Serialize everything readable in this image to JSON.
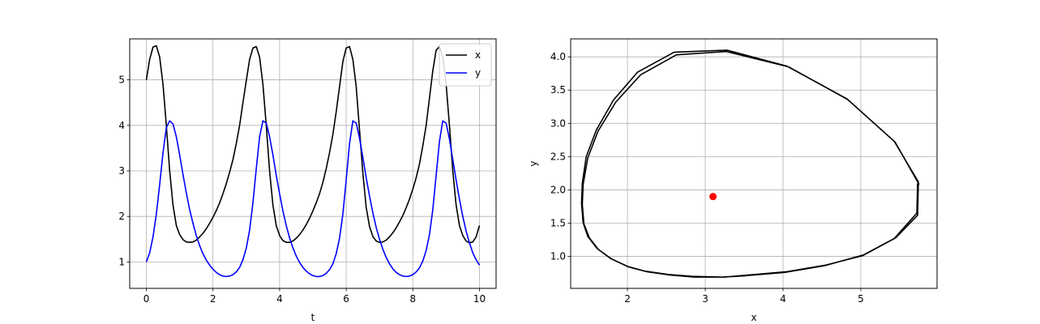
{
  "chart_data": [
    {
      "type": "line",
      "title": "",
      "xlabel": "t",
      "ylabel": "",
      "xlim": [
        -0.5,
        10.5
      ],
      "ylim": [
        0.42,
        5.9
      ],
      "xticks": [
        0,
        2,
        4,
        6,
        8,
        10
      ],
      "yticks": [
        1,
        2,
        3,
        4,
        5
      ],
      "grid": true,
      "legend_position": "top-right",
      "series": [
        {
          "name": "x",
          "color": "#000000",
          "points": [
            [
              0,
              5.0
            ],
            [
              0.1,
              5.45
            ],
            [
              0.2,
              5.72
            ],
            [
              0.3,
              5.75
            ],
            [
              0.4,
              5.5
            ],
            [
              0.5,
              4.9
            ],
            [
              0.6,
              4.0
            ],
            [
              0.7,
              3.0
            ],
            [
              0.8,
              2.25
            ],
            [
              0.9,
              1.8
            ],
            [
              1.0,
              1.6
            ],
            [
              1.1,
              1.49
            ],
            [
              1.2,
              1.44
            ],
            [
              1.3,
              1.43
            ],
            [
              1.4,
              1.44
            ],
            [
              1.5,
              1.48
            ],
            [
              1.6,
              1.55
            ],
            [
              1.7,
              1.63
            ],
            [
              1.8,
              1.73
            ],
            [
              1.9,
              1.85
            ],
            [
              2.0,
              1.98
            ],
            [
              2.1,
              2.13
            ],
            [
              2.2,
              2.3
            ],
            [
              2.3,
              2.5
            ],
            [
              2.4,
              2.72
            ],
            [
              2.5,
              2.97
            ],
            [
              2.6,
              3.25
            ],
            [
              2.7,
              3.6
            ],
            [
              2.8,
              4.0
            ],
            [
              2.9,
              4.5
            ],
            [
              3.0,
              4.98
            ],
            [
              3.1,
              5.45
            ],
            [
              3.2,
              5.7
            ],
            [
              3.3,
              5.73
            ],
            [
              3.4,
              5.5
            ],
            [
              3.5,
              4.9
            ],
            [
              3.6,
              4.0
            ],
            [
              3.7,
              3.0
            ],
            [
              3.8,
              2.25
            ],
            [
              3.9,
              1.8
            ],
            [
              4.0,
              1.58
            ],
            [
              4.1,
              1.47
            ],
            [
              4.2,
              1.43
            ],
            [
              4.3,
              1.43
            ],
            [
              4.4,
              1.46
            ],
            [
              4.5,
              1.52
            ],
            [
              4.6,
              1.6
            ],
            [
              4.7,
              1.7
            ],
            [
              4.8,
              1.82
            ],
            [
              4.9,
              1.96
            ],
            [
              5.0,
              2.12
            ],
            [
              5.1,
              2.3
            ],
            [
              5.2,
              2.5
            ],
            [
              5.3,
              2.75
            ],
            [
              5.4,
              3.05
            ],
            [
              5.5,
              3.4
            ],
            [
              5.6,
              3.8
            ],
            [
              5.7,
              4.3
            ],
            [
              5.8,
              4.85
            ],
            [
              5.9,
              5.4
            ],
            [
              6.0,
              5.7
            ],
            [
              6.1,
              5.73
            ],
            [
              6.2,
              5.45
            ],
            [
              6.3,
              4.85
            ],
            [
              6.4,
              3.9
            ],
            [
              6.5,
              2.95
            ],
            [
              6.6,
              2.2
            ],
            [
              6.7,
              1.78
            ],
            [
              6.8,
              1.56
            ],
            [
              6.9,
              1.46
            ],
            [
              7.0,
              1.43
            ],
            [
              7.1,
              1.44
            ],
            [
              7.2,
              1.48
            ],
            [
              7.3,
              1.55
            ],
            [
              7.4,
              1.64
            ],
            [
              7.5,
              1.75
            ],
            [
              7.6,
              1.88
            ],
            [
              7.7,
              2.02
            ],
            [
              7.8,
              2.19
            ],
            [
              7.9,
              2.38
            ],
            [
              8.0,
              2.6
            ],
            [
              8.1,
              2.85
            ],
            [
              8.2,
              3.15
            ],
            [
              8.3,
              3.55
            ],
            [
              8.4,
              4.0
            ],
            [
              8.5,
              4.6
            ],
            [
              8.6,
              5.2
            ],
            [
              8.7,
              5.65
            ],
            [
              8.8,
              5.73
            ],
            [
              8.9,
              5.5
            ],
            [
              9.0,
              4.9
            ],
            [
              9.1,
              4.0
            ],
            [
              9.2,
              3.0
            ],
            [
              9.3,
              2.25
            ],
            [
              9.4,
              1.8
            ],
            [
              9.5,
              1.58
            ],
            [
              9.6,
              1.46
            ],
            [
              9.7,
              1.42
            ],
            [
              9.8,
              1.44
            ],
            [
              9.9,
              1.55
            ],
            [
              10.0,
              1.8
            ]
          ]
        },
        {
          "name": "y",
          "color": "#0000ff",
          "points": [
            [
              0,
              1.0
            ],
            [
              0.1,
              1.2
            ],
            [
              0.2,
              1.55
            ],
            [
              0.3,
              2.05
            ],
            [
              0.4,
              2.7
            ],
            [
              0.5,
              3.4
            ],
            [
              0.6,
              3.95
            ],
            [
              0.7,
              4.1
            ],
            [
              0.8,
              4.03
            ],
            [
              0.9,
              3.75
            ],
            [
              1.0,
              3.35
            ],
            [
              1.1,
              2.92
            ],
            [
              1.2,
              2.52
            ],
            [
              1.3,
              2.15
            ],
            [
              1.4,
              1.85
            ],
            [
              1.5,
              1.58
            ],
            [
              1.6,
              1.36
            ],
            [
              1.7,
              1.18
            ],
            [
              1.8,
              1.04
            ],
            [
              1.9,
              0.93
            ],
            [
              2.0,
              0.84
            ],
            [
              2.1,
              0.77
            ],
            [
              2.2,
              0.72
            ],
            [
              2.3,
              0.69
            ],
            [
              2.4,
              0.68
            ],
            [
              2.5,
              0.69
            ],
            [
              2.6,
              0.72
            ],
            [
              2.7,
              0.78
            ],
            [
              2.8,
              0.88
            ],
            [
              2.9,
              1.05
            ],
            [
              3.0,
              1.3
            ],
            [
              3.1,
              1.7
            ],
            [
              3.2,
              2.3
            ],
            [
              3.3,
              3.05
            ],
            [
              3.4,
              3.75
            ],
            [
              3.5,
              4.1
            ],
            [
              3.6,
              4.05
            ],
            [
              3.7,
              3.75
            ],
            [
              3.8,
              3.35
            ],
            [
              3.9,
              2.9
            ],
            [
              4.0,
              2.5
            ],
            [
              4.1,
              2.12
            ],
            [
              4.2,
              1.8
            ],
            [
              4.3,
              1.53
            ],
            [
              4.4,
              1.31
            ],
            [
              4.5,
              1.13
            ],
            [
              4.6,
              0.99
            ],
            [
              4.7,
              0.88
            ],
            [
              4.8,
              0.8
            ],
            [
              4.9,
              0.74
            ],
            [
              5.0,
              0.7
            ],
            [
              5.1,
              0.68
            ],
            [
              5.2,
              0.68
            ],
            [
              5.3,
              0.7
            ],
            [
              5.4,
              0.75
            ],
            [
              5.5,
              0.83
            ],
            [
              5.6,
              0.96
            ],
            [
              5.7,
              1.18
            ],
            [
              5.8,
              1.52
            ],
            [
              5.9,
              2.05
            ],
            [
              6.0,
              2.8
            ],
            [
              6.1,
              3.6
            ],
            [
              6.2,
              4.1
            ],
            [
              6.3,
              4.05
            ],
            [
              6.4,
              3.72
            ],
            [
              6.5,
              3.3
            ],
            [
              6.6,
              2.85
            ],
            [
              6.7,
              2.45
            ],
            [
              6.8,
              2.08
            ],
            [
              6.9,
              1.76
            ],
            [
              7.0,
              1.5
            ],
            [
              7.1,
              1.28
            ],
            [
              7.2,
              1.1
            ],
            [
              7.3,
              0.96
            ],
            [
              7.4,
              0.85
            ],
            [
              7.5,
              0.77
            ],
            [
              7.6,
              0.72
            ],
            [
              7.7,
              0.69
            ],
            [
              7.8,
              0.68
            ],
            [
              7.9,
              0.69
            ],
            [
              8.0,
              0.72
            ],
            [
              8.1,
              0.78
            ],
            [
              8.2,
              0.87
            ],
            [
              8.3,
              1.02
            ],
            [
              8.4,
              1.25
            ],
            [
              8.5,
              1.6
            ],
            [
              8.6,
              2.15
            ],
            [
              8.7,
              2.9
            ],
            [
              8.8,
              3.65
            ],
            [
              8.9,
              4.1
            ],
            [
              9.0,
              4.05
            ],
            [
              9.1,
              3.7
            ],
            [
              9.2,
              3.25
            ],
            [
              9.3,
              2.8
            ],
            [
              9.4,
              2.38
            ],
            [
              9.5,
              2.0
            ],
            [
              9.6,
              1.68
            ],
            [
              9.7,
              1.42
            ],
            [
              9.8,
              1.2
            ],
            [
              9.9,
              1.05
            ],
            [
              10.0,
              0.93
            ]
          ]
        }
      ]
    },
    {
      "type": "line",
      "title": "",
      "xlabel": "x",
      "ylabel": "y",
      "xlim": [
        1.27,
        5.98
      ],
      "ylim": [
        0.52,
        4.27
      ],
      "xticks": [
        2,
        3,
        4,
        5
      ],
      "yticks": [
        1.0,
        1.5,
        2.0,
        2.5,
        3.0,
        3.5,
        4.0
      ],
      "grid": true,
      "series": [
        {
          "color": "#000000",
          "points": [
            [
              5.73,
              2.1
            ],
            [
              5.72,
              1.65
            ],
            [
              5.43,
              1.27
            ],
            [
              5.03,
              1.02
            ],
            [
              4.53,
              0.86
            ],
            [
              4.02,
              0.76
            ],
            [
              3.52,
              0.71
            ],
            [
              3.22,
              0.69
            ],
            [
              2.83,
              0.7
            ],
            [
              2.52,
              0.73
            ],
            [
              2.22,
              0.78
            ],
            [
              2.0,
              0.85
            ],
            [
              1.78,
              0.97
            ],
            [
              1.61,
              1.12
            ],
            [
              1.49,
              1.3
            ],
            [
              1.43,
              1.51
            ],
            [
              1.41,
              1.8
            ],
            [
              1.42,
              2.1
            ],
            [
              1.47,
              2.5
            ],
            [
              1.6,
              2.9
            ],
            [
              1.82,
              3.35
            ],
            [
              2.13,
              3.77
            ],
            [
              2.6,
              4.07
            ],
            [
              3.28,
              4.1
            ],
            [
              4.05,
              3.86
            ],
            [
              4.82,
              3.37
            ],
            [
              5.43,
              2.73
            ],
            [
              5.74,
              2.12
            ],
            [
              5.73,
              1.62
            ],
            [
              5.45,
              1.28
            ],
            [
              5.02,
              1.01
            ],
            [
              4.55,
              0.87
            ],
            [
              4.05,
              0.77
            ],
            [
              3.55,
              0.72
            ],
            [
              3.25,
              0.69
            ],
            [
              2.86,
              0.69
            ],
            [
              2.55,
              0.72
            ],
            [
              2.25,
              0.77
            ],
            [
              2.02,
              0.84
            ],
            [
              1.8,
              0.96
            ],
            [
              1.63,
              1.1
            ],
            [
              1.51,
              1.28
            ],
            [
              1.44,
              1.49
            ],
            [
              1.42,
              1.78
            ],
            [
              1.43,
              2.08
            ],
            [
              1.49,
              2.48
            ],
            [
              1.62,
              2.88
            ],
            [
              1.85,
              3.32
            ],
            [
              2.17,
              3.73
            ],
            [
              2.63,
              4.03
            ],
            [
              3.27,
              4.08
            ],
            [
              4.07,
              3.85
            ],
            [
              4.83,
              3.36
            ],
            [
              5.44,
              2.72
            ],
            [
              5.75,
              2.08
            ]
          ]
        }
      ],
      "marker": {
        "x": 3.1,
        "y": 1.9,
        "color": "#ff0000"
      }
    }
  ]
}
